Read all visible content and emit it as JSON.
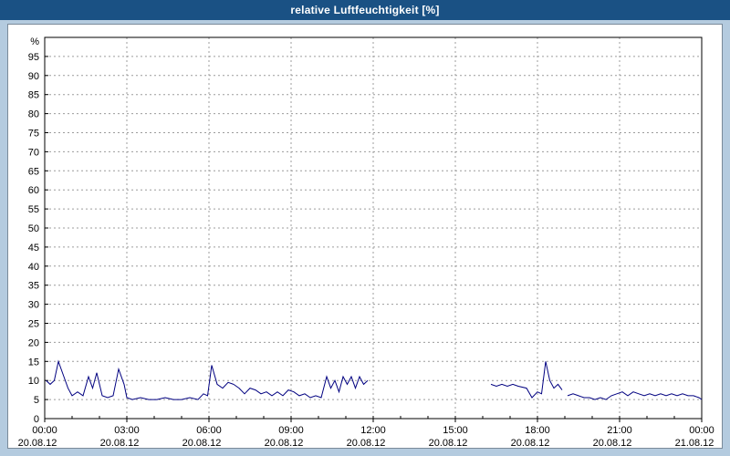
{
  "window": {
    "title": "relative Luftfeuchtigkeit [%]"
  },
  "colors": {
    "titlebar_bg": "#1a5184",
    "titlebar_text": "#ffffff",
    "page_bg": "#b4cbdf",
    "panel_bg": "#ffffff",
    "panel_border": "#7a8a99",
    "grid": "#9c9c9c",
    "axis": "#000000",
    "line": "#000080"
  },
  "chart_data": {
    "type": "line",
    "title": "relative Luftfeuchtigkeit [%]",
    "xlabel": "",
    "ylabel": "%",
    "ylim": [
      0,
      100
    ],
    "xlim_hours": [
      0,
      24
    ],
    "grid": "dashed",
    "legend": "none",
    "y_ticks": [
      0,
      5,
      10,
      15,
      20,
      25,
      30,
      35,
      40,
      45,
      50,
      55,
      60,
      65,
      70,
      75,
      80,
      85,
      90,
      95
    ],
    "x_ticks": [
      {
        "t": 0,
        "time": "00:00",
        "date": "20.08.12"
      },
      {
        "t": 3,
        "time": "03:00",
        "date": "20.08.12"
      },
      {
        "t": 6,
        "time": "06:00",
        "date": "20.08.12"
      },
      {
        "t": 9,
        "time": "09:00",
        "date": "20.08.12"
      },
      {
        "t": 12,
        "time": "12:00",
        "date": "20.08.12"
      },
      {
        "t": 15,
        "time": "15:00",
        "date": "20.08.12"
      },
      {
        "t": 18,
        "time": "18:00",
        "date": "20.08.12"
      },
      {
        "t": 21,
        "time": "21:00",
        "date": "20.08.12"
      },
      {
        "t": 24,
        "time": "00:00",
        "date": "21.08.12"
      }
    ],
    "x_minor_step_hours": 1,
    "series": [
      {
        "name": "relative Luftfeuchtigkeit",
        "color": "#000080",
        "segments": [
          [
            [
              0.05,
              10
            ],
            [
              0.2,
              9
            ],
            [
              0.35,
              10
            ],
            [
              0.5,
              15
            ],
            [
              0.7,
              11
            ],
            [
              0.85,
              8
            ],
            [
              1.0,
              6
            ],
            [
              1.2,
              7
            ],
            [
              1.4,
              6
            ],
            [
              1.6,
              11
            ],
            [
              1.75,
              8
            ],
            [
              1.9,
              12
            ],
            [
              2.1,
              6
            ],
            [
              2.3,
              5.5
            ],
            [
              2.5,
              6
            ],
            [
              2.7,
              13
            ],
            [
              2.9,
              9
            ],
            [
              3.0,
              5.5
            ],
            [
              3.2,
              5
            ],
            [
              3.5,
              5.5
            ],
            [
              3.8,
              5
            ],
            [
              4.1,
              5
            ],
            [
              4.4,
              5.5
            ],
            [
              4.7,
              5
            ],
            [
              5.0,
              5
            ],
            [
              5.3,
              5.5
            ],
            [
              5.6,
              5
            ],
            [
              5.8,
              6.5
            ],
            [
              5.95,
              6
            ],
            [
              6.1,
              14
            ],
            [
              6.3,
              9
            ],
            [
              6.5,
              8
            ],
            [
              6.7,
              9.5
            ],
            [
              6.9,
              9
            ],
            [
              7.1,
              8
            ],
            [
              7.3,
              6.5
            ],
            [
              7.5,
              8
            ],
            [
              7.7,
              7.5
            ],
            [
              7.9,
              6.5
            ],
            [
              8.1,
              7
            ],
            [
              8.3,
              6
            ],
            [
              8.5,
              7
            ],
            [
              8.7,
              6
            ],
            [
              8.9,
              7.5
            ],
            [
              9.1,
              7
            ],
            [
              9.3,
              6
            ],
            [
              9.5,
              6.5
            ],
            [
              9.7,
              5.5
            ],
            [
              9.9,
              6
            ],
            [
              10.1,
              5.5
            ],
            [
              10.3,
              11
            ],
            [
              10.45,
              8
            ],
            [
              10.6,
              10
            ],
            [
              10.75,
              7
            ],
            [
              10.9,
              11
            ],
            [
              11.05,
              9
            ],
            [
              11.2,
              11
            ],
            [
              11.35,
              8
            ],
            [
              11.5,
              11
            ],
            [
              11.65,
              9
            ],
            [
              11.8,
              10
            ]
          ],
          [
            [
              16.3,
              9
            ],
            [
              16.5,
              8.5
            ],
            [
              16.7,
              9
            ],
            [
              16.9,
              8.5
            ],
            [
              17.1,
              9
            ],
            [
              17.3,
              8.5
            ],
            [
              17.6,
              8
            ],
            [
              17.8,
              5.5
            ],
            [
              18.0,
              7
            ],
            [
              18.15,
              6.5
            ],
            [
              18.3,
              15
            ],
            [
              18.45,
              10
            ],
            [
              18.6,
              8
            ],
            [
              18.75,
              9
            ],
            [
              18.9,
              7.5
            ]
          ],
          [
            [
              19.1,
              6
            ],
            [
              19.3,
              6.5
            ],
            [
              19.5,
              6
            ],
            [
              19.7,
              5.5
            ],
            [
              19.9,
              5.5
            ],
            [
              20.1,
              5
            ],
            [
              20.3,
              5.5
            ],
            [
              20.5,
              5
            ],
            [
              20.7,
              6
            ],
            [
              20.9,
              6.5
            ],
            [
              21.1,
              7
            ],
            [
              21.3,
              6
            ],
            [
              21.5,
              7
            ],
            [
              21.7,
              6.5
            ],
            [
              21.9,
              6
            ],
            [
              22.1,
              6.5
            ],
            [
              22.3,
              6
            ],
            [
              22.5,
              6.5
            ],
            [
              22.7,
              6
            ],
            [
              22.9,
              6.5
            ],
            [
              23.1,
              6
            ],
            [
              23.3,
              6.5
            ],
            [
              23.5,
              6
            ],
            [
              23.7,
              6
            ],
            [
              23.9,
              5.5
            ],
            [
              24.0,
              5
            ]
          ]
        ]
      }
    ]
  }
}
